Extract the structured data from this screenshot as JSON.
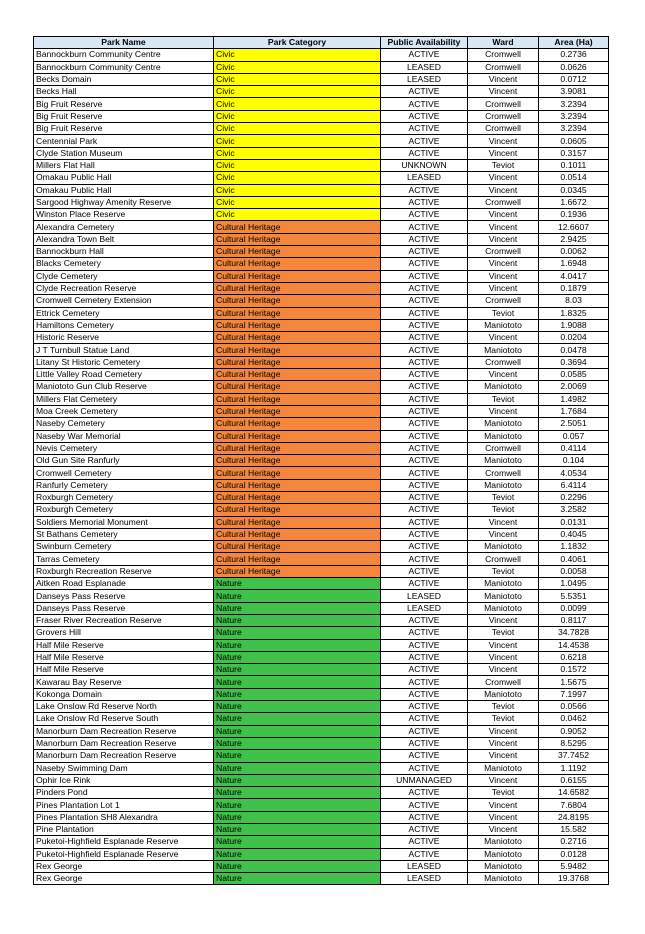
{
  "headers": [
    "Park Name",
    "Park Category",
    "Public Availability",
    "Ward",
    "Area (Ha)"
  ],
  "category_colors": {
    "Civic": "#ffff00",
    "Cultural Heritage": "#f4873b",
    "Nature": "#3fc14a"
  },
  "rows": [
    [
      "Bannockburn Community Centre",
      "Civic",
      "ACTIVE",
      "Cromwell",
      "0.2736"
    ],
    [
      "Bannockburn Community Centre",
      "Civic",
      "LEASED",
      "Cromwell",
      "0.0626"
    ],
    [
      "Becks Domain",
      "Civic",
      "LEASED",
      "Vincent",
      "0.0712"
    ],
    [
      "Becks Hall",
      "Civic",
      "ACTIVE",
      "Vincent",
      "3.9081"
    ],
    [
      "Big Fruit Reserve",
      "Civic",
      "ACTIVE",
      "Cromwell",
      "3.2394"
    ],
    [
      "Big Fruit Reserve",
      "Civic",
      "ACTIVE",
      "Cromwell",
      "3.2394"
    ],
    [
      "Big Fruit Reserve",
      "Civic",
      "ACTIVE",
      "Cromwell",
      "3.2394"
    ],
    [
      "Centennial Park",
      "Civic",
      "ACTIVE",
      "Vincent",
      "0.0605"
    ],
    [
      "Clyde Station Museum",
      "Civic",
      "ACTIVE",
      "Vincent",
      "0.3157"
    ],
    [
      "Millers Flat Hall",
      "Civic",
      "UNKNOWN",
      "Teviot",
      "0.1011"
    ],
    [
      "Omakau Public Hall",
      "Civic",
      "LEASED",
      "Vincent",
      "0.0514"
    ],
    [
      "Omakau Public Hall",
      "Civic",
      "ACTIVE",
      "Vincent",
      "0.0345"
    ],
    [
      "Sargood Highway Amenity Reserve",
      "Civic",
      "ACTIVE",
      "Cromwell",
      "1.6672"
    ],
    [
      "Winston Place Reserve",
      "Civic",
      "ACTIVE",
      "Vincent",
      "0.1936"
    ],
    [
      "Alexandra Cemetery",
      "Cultural Heritage",
      "ACTIVE",
      "Vincent",
      "12.6607"
    ],
    [
      "Alexandra Town Belt",
      "Cultural Heritage",
      "ACTIVE",
      "Vincent",
      "2.9425"
    ],
    [
      "Bannockburn Hall",
      "Cultural Heritage",
      "ACTIVE",
      "Cromwell",
      "0.0062"
    ],
    [
      "Blacks Cemetery",
      "Cultural Heritage",
      "ACTIVE",
      "Vincent",
      "1.6948"
    ],
    [
      "Clyde Cemetery",
      "Cultural Heritage",
      "ACTIVE",
      "Vincent",
      "4.0417"
    ],
    [
      "Clyde Recreation Reserve",
      "Cultural Heritage",
      "ACTIVE",
      "Vincent",
      "0.1879"
    ],
    [
      "Cromwell Cemetery Extension",
      "Cultural Heritage",
      "ACTIVE",
      "Cromwell",
      "8.03"
    ],
    [
      "Ettrick Cemetery",
      "Cultural Heritage",
      "ACTIVE",
      "Teviot",
      "1.8325"
    ],
    [
      "Hamiltons Cemetery",
      "Cultural Heritage",
      "ACTIVE",
      "Maniototo",
      "1.9088"
    ],
    [
      "Historic Reserve",
      "Cultural Heritage",
      "ACTIVE",
      "Vincent",
      "0.0204"
    ],
    [
      "J T Turnbull Statue Land",
      "Cultural Heritage",
      "ACTIVE",
      "Maniototo",
      "0.0478"
    ],
    [
      "Litany St Historic Cemetery",
      "Cultural Heritage",
      "ACTIVE",
      "Cromwell",
      "0.3694"
    ],
    [
      "Little Valley Road Cemetery",
      "Cultural Heritage",
      "ACTIVE",
      "Vincent",
      "0.0585"
    ],
    [
      "Maniototo Gun Club Reserve",
      "Cultural Heritage",
      "ACTIVE",
      "Maniototo",
      "2.0069"
    ],
    [
      "Millers Flat Cemetery",
      "Cultural Heritage",
      "ACTIVE",
      "Teviot",
      "1.4982"
    ],
    [
      "Moa Creek Cemetery",
      "Cultural Heritage",
      "ACTIVE",
      "Vincent",
      "1.7684"
    ],
    [
      "Naseby Cemetery",
      "Cultural Heritage",
      "ACTIVE",
      "Maniototo",
      "2.5051"
    ],
    [
      "Naseby War Memorial",
      "Cultural Heritage",
      "ACTIVE",
      "Maniototo",
      "0.057"
    ],
    [
      "Nevis Cemetery",
      "Cultural Heritage",
      "ACTIVE",
      "Cromwell",
      "0.4114"
    ],
    [
      "Old Gun Site Ranfurly",
      "Cultural Heritage",
      "ACTIVE",
      "Maniototo",
      "0.104"
    ],
    [
      "Cromwell Cemetery",
      "Cultural Heritage",
      "ACTIVE",
      "Cromwell",
      "4.0534"
    ],
    [
      "Ranfurly Cemetery",
      "Cultural Heritage",
      "ACTIVE",
      "Maniototo",
      "6.4114"
    ],
    [
      "Roxburgh Cemetery",
      "Cultural Heritage",
      "ACTIVE",
      "Teviot",
      "0.2296"
    ],
    [
      "Roxburgh Cemetery",
      "Cultural Heritage",
      "ACTIVE",
      "Teviot",
      "3.2582"
    ],
    [
      "Soldiers Memorial Monument",
      "Cultural Heritage",
      "ACTIVE",
      "Vincent",
      "0.0131"
    ],
    [
      "St Bathans Cemetery",
      "Cultural Heritage",
      "ACTIVE",
      "Vincent",
      "0.4045"
    ],
    [
      "Swinburn Cemetery",
      "Cultural Heritage",
      "ACTIVE",
      "Maniototo",
      "1.1832"
    ],
    [
      "Tarras Cemetery",
      "Cultural Heritage",
      "ACTIVE",
      "Cromwell",
      "0.4061"
    ],
    [
      "Roxburgh Recreation Reserve",
      "Cultural Heritage",
      "ACTIVE",
      "Teviot",
      "0.0058"
    ],
    [
      "Aitken Road Esplanade",
      "Nature",
      "ACTIVE",
      "Maniototo",
      "1.0495"
    ],
    [
      "Danseys Pass Reserve",
      "Nature",
      "LEASED",
      "Maniototo",
      "5.5351"
    ],
    [
      "Danseys Pass Reserve",
      "Nature",
      "LEASED",
      "Maniototo",
      "0.0099"
    ],
    [
      "Fraser River Recreation Reserve",
      "Nature",
      "ACTIVE",
      "Vincent",
      "0.8117"
    ],
    [
      "Grovers Hill",
      "Nature",
      "ACTIVE",
      "Teviot",
      "34.7828"
    ],
    [
      "Half Mile Reserve",
      "Nature",
      "ACTIVE",
      "Vincent",
      "14.4538"
    ],
    [
      "Half Mile Reserve",
      "Nature",
      "ACTIVE",
      "Vincent",
      "0.6218"
    ],
    [
      "Half Mile Reserve",
      "Nature",
      "ACTIVE",
      "Vincent",
      "0.1572"
    ],
    [
      "Kawarau Bay Reserve",
      "Nature",
      "ACTIVE",
      "Cromwell",
      "1.5675"
    ],
    [
      "Kokonga Domain",
      "Nature",
      "ACTIVE",
      "Maniototo",
      "7.1997"
    ],
    [
      "Lake Onslow Rd Reserve North",
      "Nature",
      "ACTIVE",
      "Teviot",
      "0.0566"
    ],
    [
      "Lake Onslow Rd Reserve South",
      "Nature",
      "ACTIVE",
      "Teviot",
      "0.0462"
    ],
    [
      "Manorburn Dam Recreation Reserve",
      "Nature",
      "ACTIVE",
      "Vincent",
      "0.9052"
    ],
    [
      "Manorburn Dam Recreation Reserve",
      "Nature",
      "ACTIVE",
      "Vincent",
      "8.5295"
    ],
    [
      "Manorburn Dam Recreation Reserve",
      "Nature",
      "ACTIVE",
      "Vincent",
      "37.7452"
    ],
    [
      "Naseby Swimming Dam",
      "Nature",
      "ACTIVE",
      "Maniototo",
      "1.1192"
    ],
    [
      "Ophir Ice Rink",
      "Nature",
      "UNMANAGED",
      "Vincent",
      "0.6155"
    ],
    [
      "Pinders Pond",
      "Nature",
      "ACTIVE",
      "Teviot",
      "14.6582"
    ],
    [
      "Pines Plantation Lot 1",
      "Nature",
      "ACTIVE",
      "Vincent",
      "7.6804"
    ],
    [
      "Pines Plantation SH8 Alexandra",
      "Nature",
      "ACTIVE",
      "Vincent",
      "24.8195"
    ],
    [
      "Pine Plantation",
      "Nature",
      "ACTIVE",
      "Vincent",
      "15.582"
    ],
    [
      "Puketoi-Highfield Esplanade Reserve",
      "Nature",
      "ACTIVE",
      "Maniototo",
      "0.2716"
    ],
    [
      "Puketoi-Highfield Esplanade Reserve",
      "Nature",
      "ACTIVE",
      "Maniototo",
      "0.0128"
    ],
    [
      "Rex George",
      "Nature",
      "LEASED",
      "Maniototo",
      "5.9482"
    ],
    [
      "Rex George",
      "Nature",
      "LEASED",
      "Maniototo",
      "19.3768"
    ]
  ]
}
